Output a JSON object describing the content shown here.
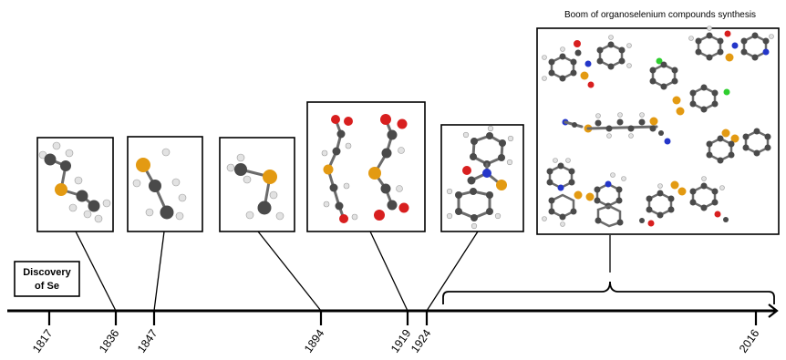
{
  "timeline": {
    "years": [
      "1817",
      "1836",
      "1847",
      "1894",
      "1919",
      "1924",
      "2016"
    ]
  },
  "discovery": {
    "line1": "Discovery",
    "line2": "of Se"
  },
  "boom": {
    "label": "Boom of organoselenium compounds synthesis"
  },
  "legend_colors": {
    "carbon": "#4a4a4a",
    "hydrogen": "#e2e2e2",
    "selenium": "#e39a12",
    "oxygen": "#d81f1f",
    "nitrogen": "#2436c9",
    "chlorine": "#2fce2f"
  }
}
